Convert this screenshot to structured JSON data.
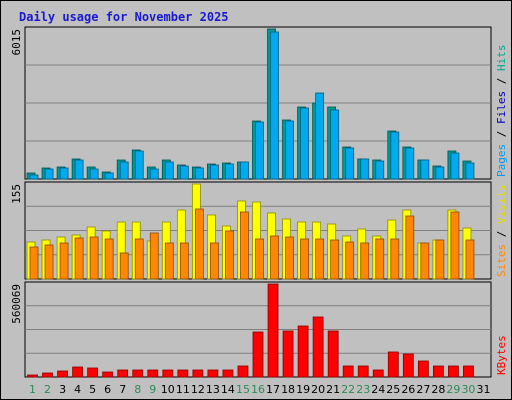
{
  "chart_data": {
    "type": "bar",
    "title": "Daily usage for November 2025",
    "categories": [
      "1",
      "2",
      "3",
      "4",
      "5",
      "6",
      "7",
      "8",
      "9",
      "10",
      "11",
      "12",
      "13",
      "14",
      "15",
      "16",
      "17",
      "18",
      "19",
      "20",
      "21",
      "22",
      "23",
      "24",
      "25",
      "26",
      "27",
      "28",
      "29",
      "30",
      "31"
    ],
    "weekend_days": [
      "1",
      "2",
      "8",
      "9",
      "15",
      "16",
      "22",
      "23",
      "29",
      "30"
    ],
    "weekend_color": "#2e8b57",
    "weekday_color": "#000000",
    "panels": [
      {
        "name": "hits-files-pages",
        "scale_label": "6015",
        "max": 6015,
        "legend": [
          {
            "text": "Pages",
            "color": "#0099ee"
          },
          {
            "text": "Files",
            "color": "#0000bb"
          },
          {
            "text": "Hits",
            "color": "#00aa88"
          }
        ],
        "series": [
          {
            "name": "Hits",
            "color": "#009999",
            "values": [
              230,
              440,
              500,
              820,
              480,
              280,
              770,
              1150,
              470,
              770,
              560,
              470,
              620,
              640,
              690,
              2320,
              6015,
              2360,
              2900,
              3050,
              2870,
              1280,
              820,
              780,
              1910,
              1290,
              760,
              520,
              1110,
              730,
              0
            ]
          },
          {
            "name": "Pages",
            "color": "#00aaee",
            "values": [
              160,
              420,
              450,
              760,
              420,
              230,
              700,
              1120,
              420,
              700,
              510,
              430,
              580,
              610,
              690,
              2300,
              5900,
              2340,
              2850,
              3440,
              2750,
              1230,
              800,
              730,
              1880,
              1250,
              760,
              500,
              1060,
              650,
              0
            ]
          }
        ]
      },
      {
        "name": "visits-sites",
        "scale_label": "155",
        "max": 155,
        "legend": [
          {
            "text": "Sites",
            "color": "#ff8800"
          },
          {
            "text": "Visits",
            "color": "#dddd00"
          }
        ],
        "series": [
          {
            "name": "Visits",
            "color": "#ffff00",
            "values": [
              60,
              63,
              68,
              72,
              85,
              78,
              93,
              93,
              62,
              93,
              113,
              155,
              105,
              87,
              128,
              126,
              108,
              98,
              93,
              93,
              90,
              70,
              82,
              70,
              96,
              113,
              58,
              63,
              113,
              83,
              0
            ]
          },
          {
            "name": "Sites",
            "color": "#ff8800",
            "values": [
              52,
              55,
              58,
              67,
              68,
              65,
              43,
              66,
              75,
              58,
              58,
              115,
              58,
              78,
              110,
              66,
              70,
              68,
              65,
              65,
              63,
              60,
              58,
              65,
              65,
              103,
              58,
              63,
              110,
              63,
              0
            ]
          }
        ]
      },
      {
        "name": "kbytes",
        "scale_label": "560069",
        "max": 560069,
        "legend": [
          {
            "text": "KBytes",
            "color": "#ff0000"
          }
        ],
        "series": [
          {
            "name": "KBytes",
            "color": "#ff0000",
            "values": [
              10000,
              27000,
              35000,
              60000,
              52000,
              32000,
              40000,
              40000,
              40000,
              45000,
              45000,
              45000,
              45000,
              45000,
              65000,
              270000,
              560069,
              280000,
              310000,
              360000,
              280000,
              65000,
              65000,
              40000,
              150000,
              140000,
              95000,
              65000,
              65000,
              65000,
              0
            ]
          }
        ]
      }
    ]
  }
}
